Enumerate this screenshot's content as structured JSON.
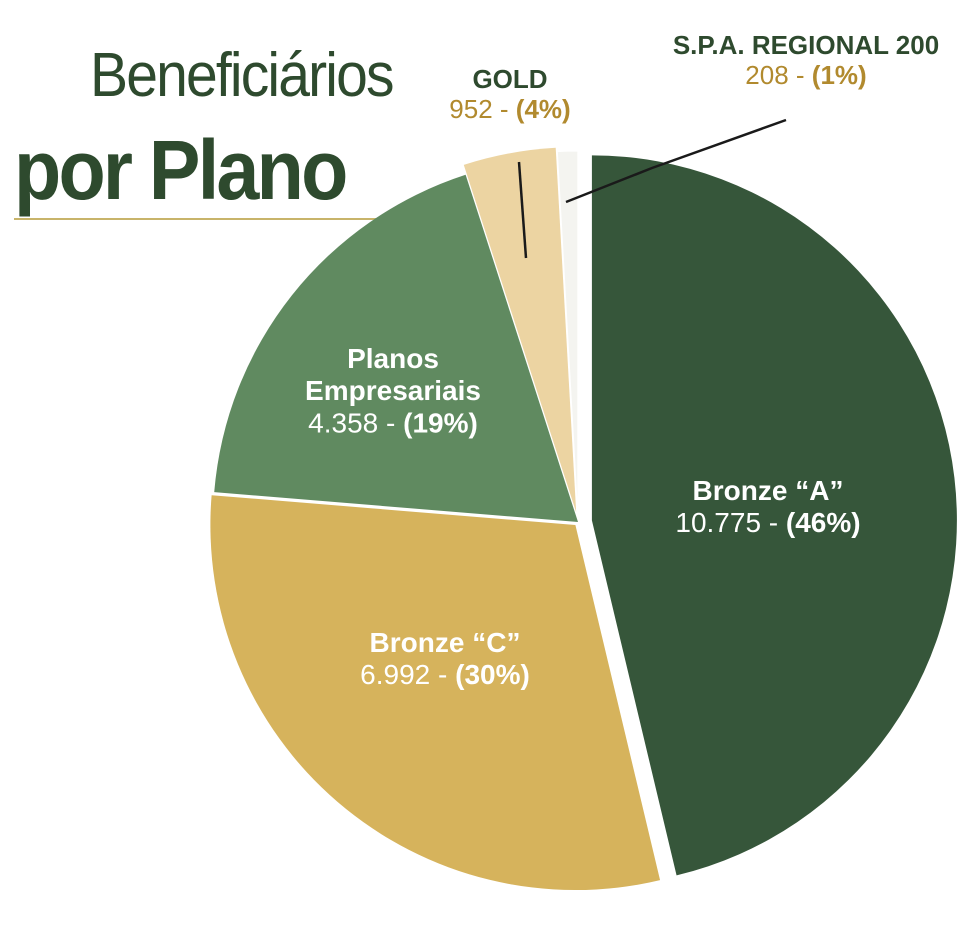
{
  "title": {
    "line1": "Beneficiários",
    "line2": "por Plano"
  },
  "chart_data": {
    "type": "pie",
    "title": "Beneficiários por Plano",
    "slices": [
      {
        "name": "Bronze “A”",
        "value": 10775,
        "value_text": "10.775",
        "percent_text": "(46%)",
        "color": "#36563a"
      },
      {
        "name": "Bronze “C”",
        "value": 6992,
        "value_text": "6.992",
        "percent_text": "(30%)",
        "color": "#d6b35c"
      },
      {
        "name": "Planos Empresariais",
        "value": 4358,
        "value_text": "4.358",
        "percent_text": "(19%)",
        "color": "#608a60"
      },
      {
        "name": "GOLD",
        "value": 952,
        "value_text": "952",
        "percent_text": "(4%)",
        "color": "#ecd4a2"
      },
      {
        "name": "S.P.A. REGIONAL 200",
        "value": 208,
        "value_text": "208",
        "percent_text": "(1%)",
        "color": "#f4f4f0"
      }
    ],
    "legend": "none"
  }
}
